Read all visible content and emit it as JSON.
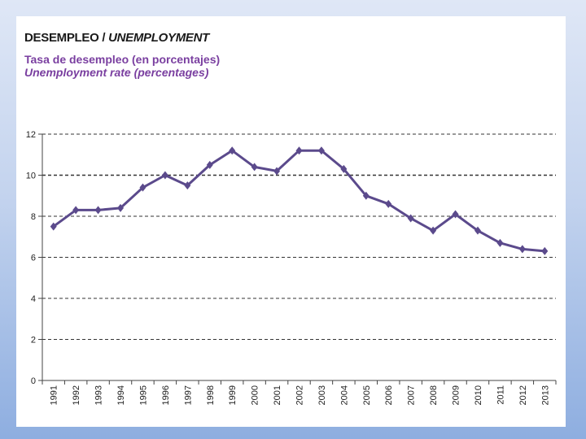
{
  "header": {
    "title_es": "DESEMPLEO /",
    "title_en": "UNEMPLOYMENT",
    "subtitle_es": "Tasa de desempleo (en porcentajes)",
    "subtitle_en": "Unemployment rate (percentages)"
  },
  "colors": {
    "line": "#5b4a8c",
    "grid": "#333333"
  },
  "chart_data": {
    "type": "line",
    "title": "DESEMPLEO / UNEMPLOYMENT",
    "subtitle": "Tasa de desempleo (en porcentajes) / Unemployment rate (percentages)",
    "xlabel": "",
    "ylabel": "",
    "ylim": [
      0,
      12
    ],
    "yticks": [
      0,
      2,
      4,
      6,
      8,
      10,
      12
    ],
    "grid": true,
    "categories": [
      "1991",
      "1992",
      "1993",
      "1994",
      "1995",
      "1996",
      "1997",
      "1998",
      "1999",
      "2000",
      "2001",
      "2002",
      "2003",
      "2004",
      "2005",
      "2006",
      "2007",
      "2008",
      "2009",
      "2010",
      "2011",
      "2012",
      "2013"
    ],
    "series": [
      {
        "values": [
          7.5,
          8.3,
          8.3,
          8.4,
          9.4,
          10.0,
          9.5,
          10.5,
          11.2,
          10.4,
          10.2,
          11.2,
          11.2,
          10.3,
          9.0,
          8.6,
          7.9,
          7.3,
          8.1,
          7.3,
          6.7,
          6.4,
          6.3
        ]
      }
    ]
  }
}
